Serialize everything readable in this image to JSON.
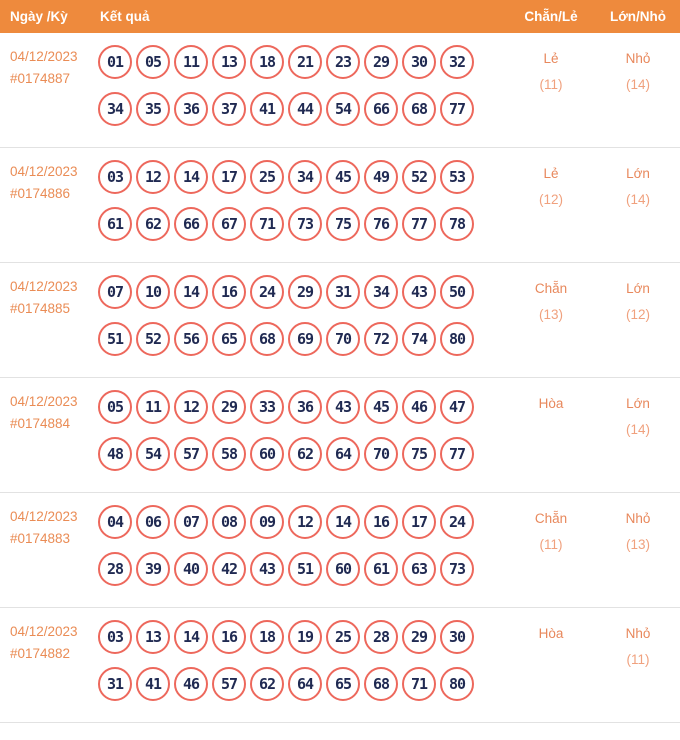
{
  "header": {
    "col_date": "Ngày /Kỳ",
    "col_result": "Kết quả",
    "col_chan_le": "Chẵn/Lẻ",
    "col_lon_nho": "Lớn/Nhỏ"
  },
  "colors": {
    "header_bg": "#EE8A3D",
    "header_text": "#FFFFFF",
    "date_text": "#EA8C55",
    "value_text": "#E8885C",
    "value_count_text": "#F0A17E",
    "ball_border": "#ED685C",
    "ball_number_text": "#202A52",
    "row_divider": "#E2E2E2"
  },
  "rows": [
    {
      "date": "04/12/2023",
      "period": "#0174887",
      "numbers_line1": [
        "01",
        "05",
        "11",
        "13",
        "18",
        "21",
        "23",
        "29",
        "30",
        "32"
      ],
      "numbers_line2": [
        "34",
        "35",
        "36",
        "37",
        "41",
        "44",
        "54",
        "66",
        "68",
        "77"
      ],
      "chan_le": "Lẻ",
      "chan_le_count": "(11)",
      "lon_nho": "Nhỏ",
      "lon_nho_count": "(14)"
    },
    {
      "date": "04/12/2023",
      "period": "#0174886",
      "numbers_line1": [
        "03",
        "12",
        "14",
        "17",
        "25",
        "34",
        "45",
        "49",
        "52",
        "53"
      ],
      "numbers_line2": [
        "61",
        "62",
        "66",
        "67",
        "71",
        "73",
        "75",
        "76",
        "77",
        "78"
      ],
      "chan_le": "Lẻ",
      "chan_le_count": "(12)",
      "lon_nho": "Lớn",
      "lon_nho_count": "(14)"
    },
    {
      "date": "04/12/2023",
      "period": "#0174885",
      "numbers_line1": [
        "07",
        "10",
        "14",
        "16",
        "24",
        "29",
        "31",
        "34",
        "43",
        "50"
      ],
      "numbers_line2": [
        "51",
        "52",
        "56",
        "65",
        "68",
        "69",
        "70",
        "72",
        "74",
        "80"
      ],
      "chan_le": "Chẵn",
      "chan_le_count": "(13)",
      "lon_nho": "Lớn",
      "lon_nho_count": "(12)"
    },
    {
      "date": "04/12/2023",
      "period": "#0174884",
      "numbers_line1": [
        "05",
        "11",
        "12",
        "29",
        "33",
        "36",
        "43",
        "45",
        "46",
        "47"
      ],
      "numbers_line2": [
        "48",
        "54",
        "57",
        "58",
        "60",
        "62",
        "64",
        "70",
        "75",
        "77"
      ],
      "chan_le": "Hòa",
      "chan_le_count": "",
      "lon_nho": "Lớn",
      "lon_nho_count": "(14)"
    },
    {
      "date": "04/12/2023",
      "period": "#0174883",
      "numbers_line1": [
        "04",
        "06",
        "07",
        "08",
        "09",
        "12",
        "14",
        "16",
        "17",
        "24"
      ],
      "numbers_line2": [
        "28",
        "39",
        "40",
        "42",
        "43",
        "51",
        "60",
        "61",
        "63",
        "73"
      ],
      "chan_le": "Chẵn",
      "chan_le_count": "(11)",
      "lon_nho": "Nhỏ",
      "lon_nho_count": "(13)"
    },
    {
      "date": "04/12/2023",
      "period": "#0174882",
      "numbers_line1": [
        "03",
        "13",
        "14",
        "16",
        "18",
        "19",
        "25",
        "28",
        "29",
        "30"
      ],
      "numbers_line2": [
        "31",
        "41",
        "46",
        "57",
        "62",
        "64",
        "65",
        "68",
        "71",
        "80"
      ],
      "chan_le": "Hòa",
      "chan_le_count": "",
      "lon_nho": "Nhỏ",
      "lon_nho_count": "(11)"
    }
  ]
}
